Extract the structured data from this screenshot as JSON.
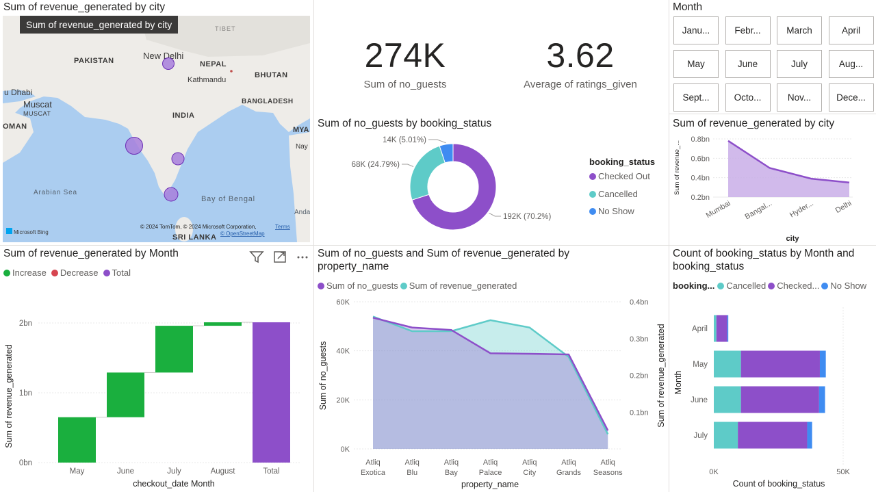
{
  "map": {
    "title": "Sum of revenue_generated by city",
    "tooltip": "Sum of revenue_generated by city",
    "labels": {
      "tibet": "TIBET",
      "new_delhi": "New Delhi",
      "pakistan": "PAKISTAN",
      "nepal": "NEPAL",
      "kathmandu": "Kathmandu",
      "bhutan": "BHUTAN",
      "abu_dhabi": "u Dhabi",
      "muscat": "Muscat",
      "muscat_region": "MUSCAT",
      "india": "INDIA",
      "bangladesh": "BANGLADESH",
      "oman": "OMAN",
      "mya": "MYA",
      "nay": "Nay",
      "arabian_sea": "Arabian Sea",
      "bay_of_bengal": "Bay of Bengal",
      "anda": "Anda",
      "sri_lanka": "SRI LANKA",
      "bing": "Microsoft Bing",
      "copyright": "© 2024 TomTom, © 2024 Microsoft Corporation,",
      "terms": "Terms",
      "osm": "© OpenStreetMap"
    }
  },
  "kpis": [
    {
      "value": "274K",
      "label": "Sum of no_guests"
    },
    {
      "value": "3.62",
      "label": "Average of ratings_given"
    }
  ],
  "slicer": {
    "title": "Month",
    "months": [
      "Janu...",
      "Febr...",
      "March",
      "April",
      "May",
      "June",
      "July",
      "Aug...",
      "Sept...",
      "Octo...",
      "Nov...",
      "Dece..."
    ]
  },
  "colors": {
    "purple": "#8d4fc9",
    "teal": "#5ecbc8",
    "blue": "#3f8cf1",
    "green": "#1aaf3e",
    "red": "#d64550",
    "gray_text": "#605e5c",
    "grid": "#e8e8e8"
  },
  "icons": [
    "filter-icon",
    "focus-mode-icon",
    "more-options-icon"
  ],
  "chart_data": [
    {
      "id": "donut",
      "type": "pie",
      "title": "Sum of no_guests by booking_status",
      "legend_title": "booking_status",
      "legend_placement": "right",
      "slices": [
        {
          "name": "Checked Out",
          "value": 192,
          "label": "192K (70.2%)"
        },
        {
          "name": "Cancelled",
          "value": 68,
          "label": "68K (24.79%)"
        },
        {
          "name": "No Show",
          "value": 14,
          "label": "14K (5.01%)"
        }
      ]
    },
    {
      "id": "area_city",
      "type": "area",
      "title": "Sum of revenue_generated by city",
      "xlabel": "city",
      "ylabel": "Sum of revenue_...",
      "categories": [
        "Mumbai",
        "Bangal...",
        "Hyder...",
        "Delhi"
      ],
      "values": [
        0.78,
        0.5,
        0.39,
        0.35
      ],
      "ylim": [
        0.2,
        0.8
      ],
      "ticks": [
        0.2,
        0.4,
        0.6,
        0.8
      ],
      "tick_labels": [
        "0.2bn",
        "0.4bn",
        "0.6bn",
        "0.8bn"
      ]
    },
    {
      "id": "waterfall",
      "type": "bar",
      "title": "Sum of revenue_generated by Month",
      "xlabel": "checkout_date Month",
      "ylabel": "Sum of revenue_generated",
      "legend": [
        "Increase",
        "Decrease",
        "Total"
      ],
      "legend_placement": "top-left",
      "categories": [
        "May",
        "June",
        "July",
        "August",
        "Total"
      ],
      "values": [
        0.65,
        0.64,
        0.67,
        0.05,
        2.01
      ],
      "ylim": [
        0,
        2.0
      ],
      "ticks": [
        0,
        1,
        2
      ],
      "tick_labels": [
        "0bn",
        "1bn",
        "2bn"
      ]
    },
    {
      "id": "combo",
      "type": "area",
      "title": "Sum of no_guests and Sum of revenue_generated by property_name",
      "xlabel": "property_name",
      "ylabel": "Sum of no_guests",
      "y2label": "Sum of revenue_generated",
      "legend_placement": "top-left",
      "categories": [
        "Atliq Exotica",
        "Atliq Blu",
        "Atliq Bay",
        "Atliq Palace",
        "Atliq City",
        "Atliq Grands",
        "Atliq Seasons"
      ],
      "series": [
        {
          "name": "Sum of no_guests",
          "axis": "left",
          "values": [
            53.5,
            49.5,
            48.5,
            39,
            38.8,
            38.5,
            7.5
          ]
        },
        {
          "name": "Sum of revenue_generated",
          "axis": "right",
          "values": [
            0.36,
            0.32,
            0.32,
            0.35,
            0.33,
            0.25,
            0.04
          ]
        }
      ],
      "ylim": [
        0,
        60
      ],
      "y2lim": [
        0,
        0.4
      ],
      "ticks": [
        0,
        20,
        40,
        60
      ],
      "tick_labels": [
        "0K",
        "20K",
        "40K",
        "60K"
      ],
      "ticks2": [
        0.1,
        0.2,
        0.3,
        0.4
      ],
      "tick2_labels": [
        "0.1bn",
        "0.2bn",
        "0.3bn",
        "0.4bn"
      ]
    },
    {
      "id": "stacked",
      "type": "bar",
      "title": "Count of booking_status by Month and booking_status",
      "legend_title": "booking...",
      "legend": [
        "Cancelled",
        "Checked...",
        "No Show"
      ],
      "legend_placement": "top",
      "xlabel": "Count of booking_status",
      "ylabel": "Month",
      "categories": [
        "April",
        "May",
        "June",
        "July"
      ],
      "series": [
        {
          "name": "Cancelled",
          "values": [
            1.0,
            10.5,
            10.5,
            9.3
          ]
        },
        {
          "name": "Checked...",
          "values": [
            4.2,
            30.5,
            30.2,
            26.8
          ]
        },
        {
          "name": "No Show",
          "values": [
            0.4,
            2.3,
            2.3,
            1.9
          ]
        }
      ],
      "xlim": [
        0,
        50
      ],
      "ticks": [
        0,
        50
      ],
      "tick_labels": [
        "0K",
        "50K"
      ]
    }
  ]
}
